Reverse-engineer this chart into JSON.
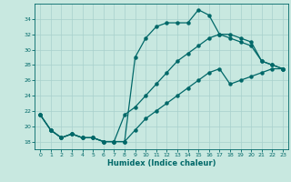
{
  "xlabel": "Humidex (Indice chaleur)",
  "bg_color": "#c8e8e0",
  "grid_color": "#a8d0cc",
  "line_color": "#006868",
  "xlim": [
    -0.5,
    23.5
  ],
  "ylim": [
    17.0,
    36.0
  ],
  "xticks": [
    0,
    1,
    2,
    3,
    4,
    5,
    6,
    7,
    8,
    9,
    10,
    11,
    12,
    13,
    14,
    15,
    16,
    17,
    18,
    19,
    20,
    21,
    22,
    23
  ],
  "yticks": [
    18,
    20,
    22,
    24,
    26,
    28,
    30,
    32,
    34
  ],
  "line1_x": [
    0,
    1,
    2,
    3,
    4,
    5,
    6,
    7,
    8,
    9,
    10,
    11,
    12,
    13,
    14,
    15,
    16,
    17,
    18,
    19,
    20,
    21,
    22,
    23
  ],
  "line1_y": [
    21.5,
    19.5,
    18.5,
    19.0,
    18.5,
    18.5,
    18.0,
    18.0,
    18.0,
    29.0,
    31.5,
    33.0,
    33.5,
    33.5,
    33.5,
    35.2,
    34.5,
    32.0,
    31.5,
    31.0,
    30.5,
    28.5,
    28.0,
    27.5
  ],
  "line2_x": [
    0,
    1,
    2,
    3,
    4,
    5,
    6,
    7,
    8,
    9,
    10,
    11,
    12,
    13,
    14,
    15,
    16,
    17,
    18,
    19,
    20,
    21,
    22,
    23
  ],
  "line2_y": [
    21.5,
    19.5,
    18.5,
    19.0,
    18.5,
    18.5,
    18.0,
    18.0,
    21.5,
    22.5,
    24.0,
    25.5,
    27.0,
    28.5,
    29.5,
    30.5,
    31.5,
    32.0,
    32.0,
    31.5,
    31.0,
    28.5,
    28.0,
    27.5
  ],
  "line3_x": [
    0,
    1,
    2,
    3,
    4,
    5,
    6,
    7,
    8,
    9,
    10,
    11,
    12,
    13,
    14,
    15,
    16,
    17,
    18,
    19,
    20,
    21,
    22,
    23
  ],
  "line3_y": [
    21.5,
    19.5,
    18.5,
    19.0,
    18.5,
    18.5,
    18.0,
    18.0,
    18.0,
    19.5,
    21.0,
    22.0,
    23.0,
    24.0,
    25.0,
    26.0,
    27.0,
    27.5,
    25.5,
    26.0,
    26.5,
    27.0,
    27.5,
    27.5
  ]
}
